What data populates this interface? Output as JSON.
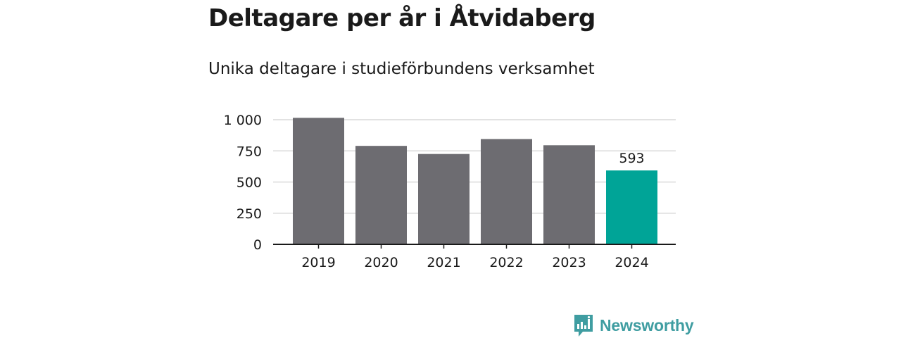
{
  "title": "Deltagare per år i Åtvidaberg",
  "subtitle": "Unika deltagare i studieförbundens verksamhet",
  "brand": {
    "name": "Newsworthy",
    "icon": "newsworthy-logo-icon",
    "color": "#3f9da1"
  },
  "colors": {
    "bar_default": "#6d6c71",
    "bar_highlight": "#00a497",
    "grid": "#d9d9d9",
    "axis": "#1a1a1a",
    "text": "#1a1a1a"
  },
  "chart_data": {
    "type": "bar",
    "title": "Deltagare per år i Åtvidaberg",
    "subtitle": "Unika deltagare i studieförbundens verksamhet",
    "xlabel": "",
    "ylabel": "",
    "categories": [
      "2019",
      "2020",
      "2021",
      "2022",
      "2023",
      "2024"
    ],
    "values": [
      1015,
      790,
      725,
      845,
      795,
      593
    ],
    "highlight_index": 5,
    "data_labels": [
      null,
      null,
      null,
      null,
      null,
      "593"
    ],
    "ylim": [
      0,
      1000
    ],
    "yticks": [
      0,
      250,
      500,
      750,
      1000
    ],
    "ytick_labels": [
      "0",
      "250",
      "500",
      "750",
      "1 000"
    ],
    "grid": true,
    "legend": "none"
  }
}
